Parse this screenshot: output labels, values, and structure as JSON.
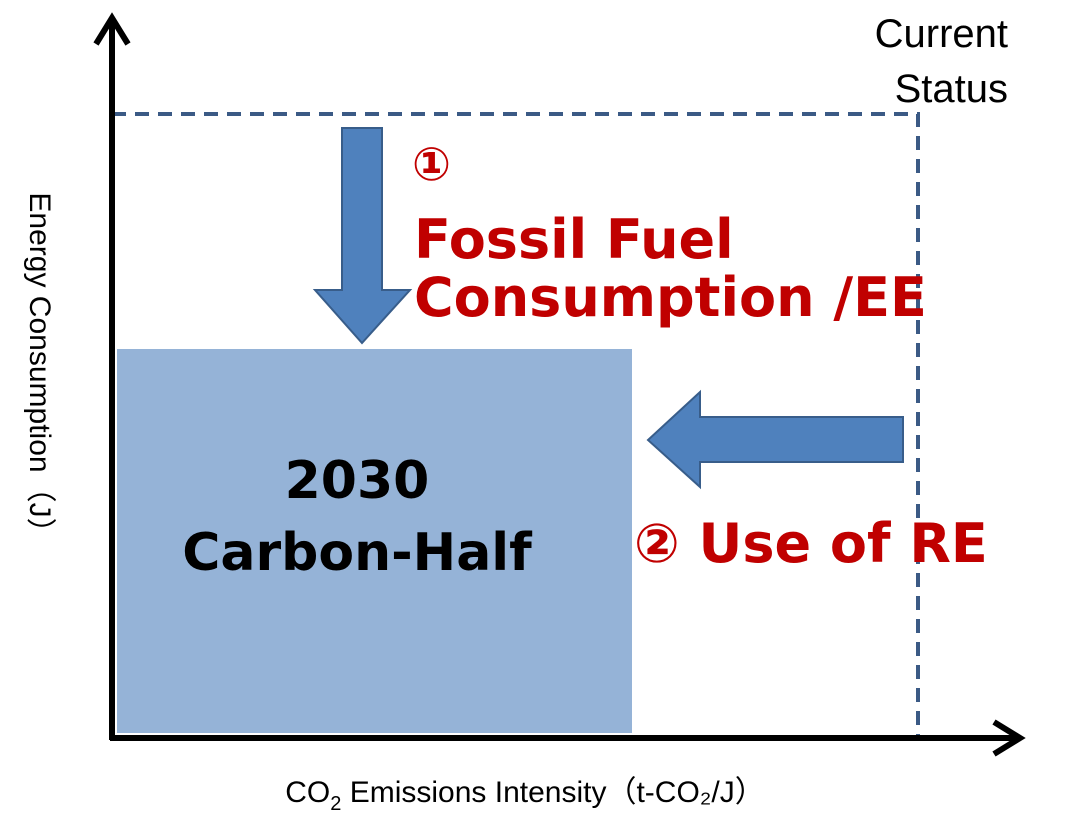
{
  "status_label": [
    "Current",
    "Status"
  ],
  "steps": [
    {
      "marker": "①",
      "lines": [
        "Fossil Fuel",
        "Consumption /EE"
      ]
    },
    {
      "label": "② Use of  RE"
    }
  ],
  "target": {
    "lines": [
      "2030",
      "Carbon-Half"
    ]
  },
  "y_axis_label": "Energy  Consumption（J）",
  "x_axis_label": {
    "parts": [
      "CO",
      "2",
      " Emissions Intensity（t-CO₂/J）"
    ]
  }
}
